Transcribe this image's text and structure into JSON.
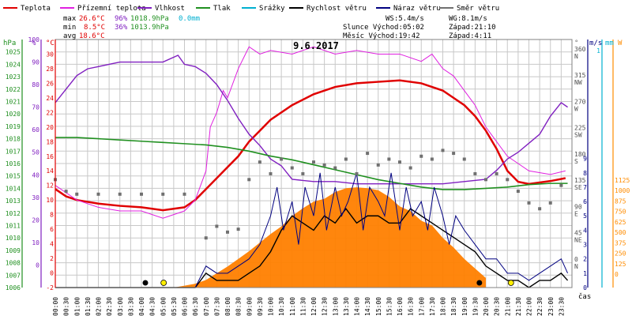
{
  "title": "9.6.2017",
  "legend": [
    {
      "label": "Teplota",
      "color": "#e00000"
    },
    {
      "label": "Přízemní teplota",
      "color": "#e020e0"
    },
    {
      "label": "Vlhkost",
      "color": "#8020c0"
    },
    {
      "label": "Tlak",
      "color": "#209020"
    },
    {
      "label": "Srážky",
      "color": "#00b0d0"
    },
    {
      "label": "Rychlost větru",
      "color": "#000000"
    },
    {
      "label": "Náraz větru",
      "color": "#000080"
    },
    {
      "label": "Směr větru",
      "color": "#707070"
    }
  ],
  "stats": {
    "max_label": "max",
    "max_temp": "26.6°C",
    "max_hum": "96%",
    "max_press": "1018.9hPa",
    "max_rain": "0.0mm",
    "min_label": "min",
    "min_temp": "8.5°C",
    "min_hum": "36%",
    "min_press": "1013.9hPa",
    "avg_label": "avg",
    "avg_temp": "18.6°C"
  },
  "wind_info": {
    "ws": "WS:5.4m/s",
    "wg": "WG:8.1m/s"
  },
  "sun_info": {
    "sun": "Slunce Východ:05:02",
    "sun_set": "Západ:21:10",
    "moon": "Měsíc  Východ:19:42",
    "moon_set": "Západ:4:11"
  },
  "axis_units": {
    "hpa": "hPa",
    "pct": "%",
    "degc": "°C",
    "deg": "°",
    "ms": "m/s",
    "mm": "mm",
    "w": "W",
    "time": "čas"
  },
  "colors": {
    "temperature": "#e00000",
    "ground": "#e020e0",
    "humidity": "#8020c0",
    "pressure": "#209020",
    "rain": "#00b0d0",
    "wind": "#000000",
    "gust": "#000080",
    "direction": "#707070",
    "solar": "#ff8000",
    "solar_axis": "#ff8c00",
    "grid": "#c8c8c8"
  },
  "chart_data": {
    "type": "line",
    "title": "9.6.2017",
    "xlabel": "čas",
    "x_ticks": [
      "00:00",
      "00:30",
      "01:00",
      "01:30",
      "02:00",
      "02:30",
      "03:00",
      "03:30",
      "04:00",
      "04:30",
      "05:00",
      "05:30",
      "06:00",
      "06:30",
      "07:00",
      "07:30",
      "08:00",
      "08:30",
      "09:00",
      "09:30",
      "10:00",
      "10:30",
      "11:00",
      "11:30",
      "12:00",
      "12:30",
      "13:00",
      "13:30",
      "14:00",
      "14:30",
      "15:00",
      "15:30",
      "16:00",
      "16:30",
      "17:00",
      "17:30",
      "18:00",
      "18:30",
      "19:00",
      "19:30",
      "20:00",
      "20:30",
      "21:00",
      "21:30",
      "22:00",
      "22:30",
      "23:00",
      "23:30"
    ],
    "axes": {
      "pressure_hpa": {
        "ticks": [
          1006,
          1007,
          1008,
          1009,
          1010,
          1011,
          1012,
          1013,
          1014,
          1015,
          1016,
          1017,
          1018,
          1019,
          1020,
          1021,
          1022,
          1023,
          1024,
          1025
        ],
        "range": [
          1006,
          1026
        ]
      },
      "humidity_pct": {
        "ticks": [
          0,
          10,
          20,
          30,
          40,
          50,
          60,
          70,
          80,
          90,
          100
        ],
        "range": [
          -10,
          100
        ]
      },
      "temperature_c": {
        "ticks": [
          -2,
          0,
          2,
          4,
          6,
          8,
          10,
          12,
          14,
          16,
          18,
          20,
          22,
          24,
          26,
          28,
          30
        ],
        "range": [
          -2,
          32
        ]
      },
      "direction_deg": {
        "ticks": [
          0,
          45,
          90,
          135,
          180,
          225,
          270,
          315,
          360
        ],
        "labels": [
          "N",
          "NE",
          "E",
          "SE",
          "S",
          "SW",
          "W",
          "NW",
          "N"
        ],
        "range": [
          0,
          360
        ]
      },
      "wind_ms": {
        "ticks": [
          0,
          1,
          2,
          3,
          4,
          5,
          6,
          7,
          8,
          9
        ],
        "range": [
          0,
          9
        ]
      },
      "rain_mm": {
        "ticks": [
          1
        ],
        "range": [
          0,
          1
        ]
      },
      "solar_w": {
        "ticks": [
          0,
          125,
          250,
          375,
          500,
          625,
          750,
          875,
          1000,
          1125
        ],
        "range": [
          0,
          1125
        ]
      }
    },
    "series": [
      {
        "name": "Teplota",
        "unit": "°C",
        "x": [
          0,
          0.5,
          1,
          2,
          3,
          4,
          5,
          6,
          6.5,
          7,
          7.5,
          8,
          8.5,
          9,
          9.5,
          10,
          11,
          12,
          13,
          14,
          15,
          16,
          17,
          18,
          18.5,
          19,
          19.5,
          20,
          20.5,
          21,
          21.5,
          22,
          23,
          23.7
        ],
        "y": [
          11.5,
          10.5,
          10,
          9.5,
          9.2,
          9,
          8.6,
          9,
          10,
          11.5,
          13,
          14.5,
          16,
          18,
          19.5,
          21,
          23,
          24.5,
          25.5,
          26,
          26.2,
          26.4,
          26,
          25,
          24,
          23,
          21.5,
          19.5,
          17,
          14,
          12.5,
          12.2,
          12.6,
          13
        ]
      },
      {
        "name": "Přízemní teplota",
        "unit": "°C",
        "x": [
          0,
          1,
          2,
          3,
          4,
          5,
          5.5,
          6,
          6.5,
          7,
          7.2,
          7.5,
          7.8,
          8,
          8.5,
          9,
          9.5,
          10,
          11,
          12,
          13,
          14,
          15,
          16,
          17,
          17.5,
          18,
          18.5,
          19,
          19.5,
          20,
          20.5,
          21,
          21.5,
          22,
          23,
          23.7
        ],
        "y": [
          12,
          10,
          9,
          8.5,
          8.5,
          7.5,
          8,
          8.5,
          10,
          14,
          20,
          22,
          25,
          24,
          28,
          31,
          30,
          30.5,
          30,
          31,
          30,
          30.5,
          30,
          30,
          29,
          30,
          28,
          27,
          25,
          23,
          20,
          18,
          16,
          15,
          14,
          13.5,
          14
        ]
      },
      {
        "name": "Vlhkost",
        "unit": "%",
        "x": [
          0,
          0.5,
          1,
          1.5,
          2,
          3,
          4,
          5,
          5.7,
          6,
          6.5,
          7,
          7.5,
          8,
          8.5,
          9,
          9.5,
          10,
          10.5,
          11,
          12,
          13,
          14,
          15,
          16,
          17,
          18,
          19,
          20,
          20.5,
          21,
          21.5,
          22,
          22.5,
          23,
          23.5,
          23.8
        ],
        "y": [
          72,
          78,
          84,
          87,
          88,
          90,
          90,
          90,
          93,
          89,
          88,
          85,
          80,
          73,
          65,
          58,
          53,
          47,
          44,
          38,
          37,
          37,
          36,
          36,
          36,
          36,
          36,
          37,
          38,
          42,
          47,
          50,
          54,
          58,
          66,
          72,
          70
        ]
      },
      {
        "name": "Tlak",
        "unit": "hPa",
        "x": [
          0,
          1,
          2,
          3,
          4,
          5,
          6,
          7,
          8,
          9,
          10,
          11,
          12,
          13,
          14,
          15,
          16,
          17,
          18,
          19,
          20,
          21,
          22,
          23,
          23.8
        ],
        "y": [
          1018.1,
          1018.1,
          1018.0,
          1017.9,
          1017.8,
          1017.7,
          1017.6,
          1017.5,
          1017.3,
          1017.0,
          1016.6,
          1016.3,
          1015.9,
          1015.5,
          1015.1,
          1014.7,
          1014.4,
          1014.1,
          1013.9,
          1013.9,
          1014.0,
          1014.1,
          1014.3,
          1014.4,
          1014.4
        ]
      },
      {
        "name": "Srážky",
        "unit": "mm",
        "x": [
          0,
          23.8
        ],
        "y": [
          0,
          0
        ]
      },
      {
        "name": "Rychlost větru",
        "unit": "m/s",
        "x": [
          0,
          6.5,
          7,
          7.5,
          8,
          8.5,
          9,
          9.5,
          10,
          10.5,
          11,
          11.5,
          12,
          12.5,
          13,
          13.5,
          14,
          14.5,
          15,
          15.5,
          16,
          16.5,
          17,
          17.5,
          18,
          18.5,
          19,
          19.5,
          20,
          20.5,
          21,
          21.5,
          22,
          22.5,
          23,
          23.5,
          23.8
        ],
        "y": [
          0,
          0,
          1,
          0.5,
          0.5,
          0.5,
          1,
          1.5,
          2.5,
          4,
          5,
          4.5,
          4,
          5,
          4.5,
          5.5,
          4.5,
          5,
          5,
          4.5,
          4.5,
          5.5,
          5,
          4.5,
          4,
          3.5,
          3,
          2.5,
          1.5,
          1,
          0.5,
          0.5,
          0,
          0.5,
          0.5,
          1,
          0.5
        ]
      },
      {
        "name": "Náraz větru",
        "unit": "m/s",
        "x": [
          0,
          6.5,
          7,
          7.5,
          8,
          8.5,
          9,
          9.5,
          10,
          10.3,
          10.6,
          11,
          11.3,
          11.6,
          12,
          12.3,
          12.6,
          13,
          13.3,
          13.6,
          14,
          14.3,
          14.6,
          15,
          15.3,
          15.6,
          16,
          16.3,
          16.6,
          17,
          17.3,
          17.6,
          18,
          18.3,
          18.6,
          19,
          19.5,
          20,
          20.5,
          21,
          21.5,
          22,
          22.5,
          23,
          23.5,
          23.8
        ],
        "y": [
          0,
          0,
          1.5,
          1,
          1,
          1.5,
          2,
          3,
          5,
          7,
          4,
          6,
          3,
          7,
          5,
          8,
          4,
          7,
          5,
          6,
          8,
          4,
          7,
          6,
          5,
          8,
          4,
          7,
          5,
          6,
          4,
          7,
          5,
          3,
          5,
          4,
          3,
          2,
          2,
          1,
          1,
          0.5,
          1,
          1.5,
          2,
          1
        ]
      },
      {
        "name": "Směr větru",
        "unit": "°",
        "x": [
          0,
          0.5,
          1,
          2,
          3,
          4,
          5,
          6,
          7,
          7.5,
          8,
          8.5,
          9,
          9.5,
          10,
          10.5,
          11,
          11.5,
          12,
          12.5,
          13,
          13.5,
          14,
          14.5,
          15,
          15.5,
          16,
          16.5,
          17,
          17.5,
          18,
          18.5,
          19,
          19.5,
          20,
          20.5,
          21,
          21.5,
          22,
          22.5,
          23,
          23.5
        ],
        "y": [
          140,
          120,
          115,
          115,
          115,
          115,
          115,
          115,
          40,
          60,
          50,
          55,
          140,
          170,
          150,
          175,
          160,
          150,
          170,
          165,
          160,
          175,
          150,
          185,
          165,
          175,
          170,
          160,
          180,
          175,
          190,
          185,
          175,
          150,
          140,
          150,
          140,
          120,
          100,
          90,
          100,
          130
        ]
      }
    ],
    "solar_radiation": {
      "name": "Solar",
      "unit": "W",
      "x": [
        5.5,
        6,
        6.5,
        7,
        7.5,
        8,
        8.5,
        9,
        9.5,
        10,
        10.5,
        11,
        11.5,
        12,
        12.5,
        13,
        13.5,
        14,
        14.5,
        15,
        15.5,
        16,
        16.5,
        17,
        17.5,
        18,
        18.5,
        19,
        19.5,
        20
      ],
      "y": [
        0,
        20,
        40,
        80,
        150,
        220,
        300,
        380,
        470,
        560,
        640,
        750,
        830,
        900,
        930,
        1000,
        1040,
        1050,
        1040,
        1020,
        950,
        850,
        800,
        700,
        650,
        520,
        420,
        300,
        200,
        100
      ]
    },
    "events": {
      "sunrise": "05:02",
      "sunset": "21:10",
      "moonrise": "19:42",
      "moonset": "4:11"
    }
  }
}
